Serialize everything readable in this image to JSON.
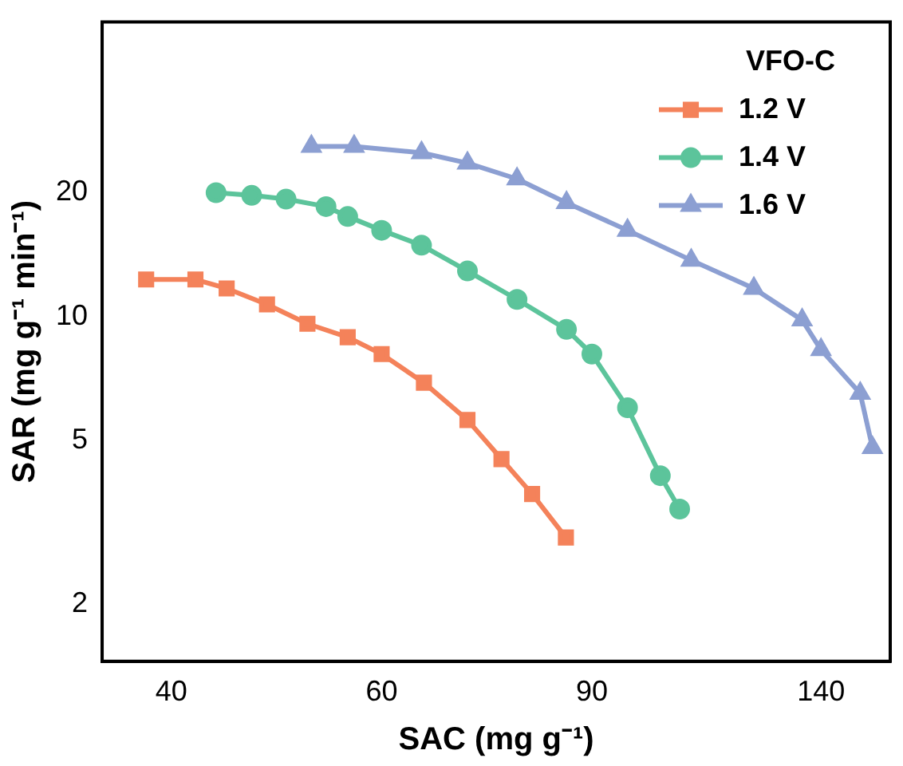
{
  "chart_data": {
    "type": "line",
    "xlabel": "SAC (mg g⁻¹)",
    "ylabel": "SAR (mg g⁻¹ min⁻¹)",
    "legend_title": "VFO-C",
    "log": "xy",
    "xlim": [
      35,
      160
    ],
    "xticks": [
      40,
      60,
      90,
      140
    ],
    "ylim": [
      1.45,
      52
    ],
    "yticks": [
      2,
      5,
      10,
      20
    ],
    "grid": false,
    "legend": "top right",
    "series": [
      {
        "name": "1.2 V",
        "color": "#f4825a",
        "marker": "square",
        "x": [
          38.1,
          41.9,
          44.5,
          48.1,
          52,
          56.2,
          60,
          65.1,
          70.8,
          75.6,
          80.2,
          85.6
        ],
        "values": [
          12.3,
          12.3,
          11.7,
          10.7,
          9.6,
          8.9,
          8.1,
          6.9,
          5.6,
          4.5,
          3.7,
          2.9
        ]
      },
      {
        "name": "1.4 V",
        "color": "#5cc49b",
        "marker": "circle",
        "x": [
          43.6,
          46.7,
          49.9,
          53.9,
          56.2,
          60,
          64.8,
          70.8,
          77.9,
          85.7,
          90,
          96.4,
          102.7,
          106.6
        ],
        "values": [
          20,
          19.7,
          19.3,
          18.5,
          17.5,
          16.2,
          14.9,
          12.9,
          11,
          9.3,
          8.1,
          6,
          4.1,
          3.4
        ]
      },
      {
        "name": "1.6 V",
        "color": "#8c9fd2",
        "marker": "triangle",
        "x": [
          52.4,
          56.9,
          64.8,
          70.8,
          77.9,
          85.7,
          96.4,
          109,
          123,
          135,
          140,
          151,
          154.6
        ],
        "values": [
          25.9,
          25.9,
          25,
          23.6,
          21.6,
          18.9,
          16.2,
          13.7,
          11.7,
          9.8,
          8.3,
          6.5,
          4.8
        ]
      }
    ]
  }
}
